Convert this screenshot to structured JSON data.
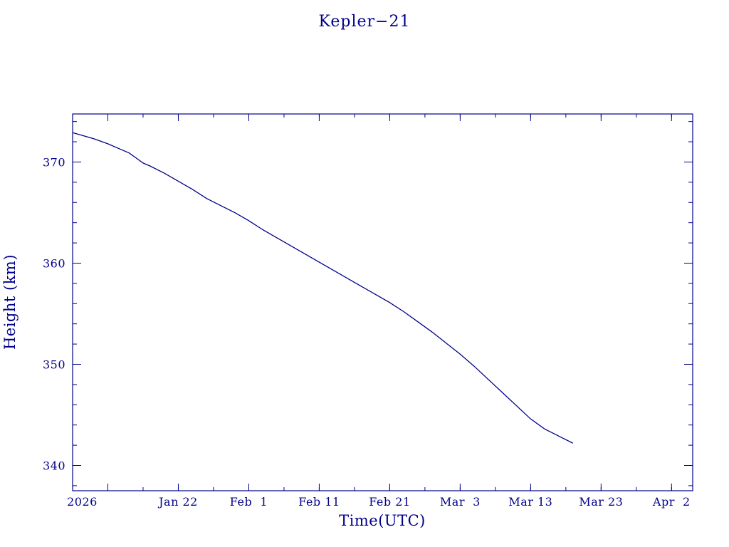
{
  "colors": {
    "axis": "#00008b",
    "series": "#00008b",
    "background": "#ffffff"
  },
  "chart_data": {
    "type": "line",
    "title": "Kepler−21",
    "xlabel": "Time(UTC)",
    "ylabel": "Height (km)",
    "xlim": [
      "2026-01-07",
      "2026-04-05"
    ],
    "ylim": [
      337.5,
      374.75
    ],
    "grid": false,
    "x_ticks": [
      {
        "date": "2026-01-12",
        "label": "2026 Jan 12",
        "label_text": "2026"
      },
      {
        "date": "2026-01-22",
        "label": "Jan 22"
      },
      {
        "date": "2026-02-01",
        "label": "Feb  1"
      },
      {
        "date": "2026-02-11",
        "label": "Feb 11"
      },
      {
        "date": "2026-02-21",
        "label": "Feb 21"
      },
      {
        "date": "2026-03-03",
        "label": "Mar  3"
      },
      {
        "date": "2026-03-13",
        "label": "Mar 13"
      },
      {
        "date": "2026-03-23",
        "label": "Mar 23"
      },
      {
        "date": "2026-04-02",
        "label": "Apr  2"
      }
    ],
    "y_ticks": [
      {
        "value": 340,
        "label": "340"
      },
      {
        "value": 350,
        "label": "350"
      },
      {
        "value": 360,
        "label": "360"
      },
      {
        "value": 370,
        "label": "370"
      }
    ],
    "series": [
      {
        "x": [
          "2026-01-07",
          "2026-01-10",
          "2026-01-12",
          "2026-01-14",
          "2026-01-15",
          "2026-01-16",
          "2026-01-17",
          "2026-01-18",
          "2026-01-20",
          "2026-01-22",
          "2026-01-24",
          "2026-01-26",
          "2026-01-28",
          "2026-01-30",
          "2026-02-01",
          "2026-02-03",
          "2026-02-05",
          "2026-02-07",
          "2026-02-09",
          "2026-02-11",
          "2026-02-13",
          "2026-02-15",
          "2026-02-17",
          "2026-02-19",
          "2026-02-21",
          "2026-02-23",
          "2026-02-25",
          "2026-02-27",
          "2026-03-01",
          "2026-03-03",
          "2026-03-05",
          "2026-03-07",
          "2026-03-09",
          "2026-03-11",
          "2026-03-13",
          "2026-03-15",
          "2026-03-17",
          "2026-03-19"
        ],
        "y": [
          372.9,
          372.3,
          371.8,
          371.2,
          370.9,
          370.4,
          369.9,
          369.6,
          368.9,
          368.1,
          367.3,
          366.4,
          365.7,
          365.0,
          364.2,
          363.3,
          362.5,
          361.7,
          360.9,
          360.1,
          359.3,
          358.5,
          357.7,
          356.9,
          356.1,
          355.2,
          354.2,
          353.2,
          352.1,
          351.0,
          349.8,
          348.5,
          347.2,
          345.9,
          344.6,
          343.6,
          342.9,
          342.2
        ]
      }
    ]
  }
}
